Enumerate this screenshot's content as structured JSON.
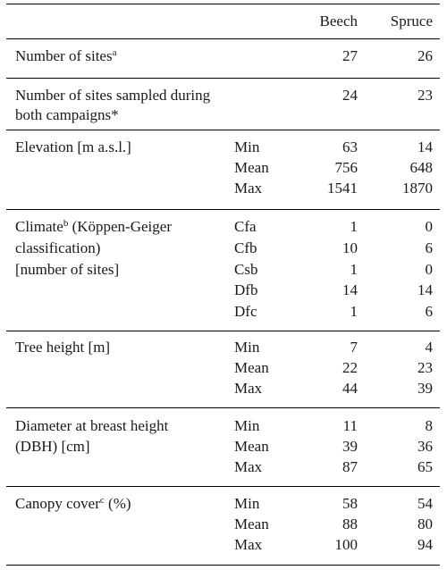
{
  "header": {
    "beech": "Beech",
    "spruce": "Spruce"
  },
  "rows": {
    "sites": {
      "label": "Number of sites",
      "sup": "a",
      "beech": "27",
      "spruce": "26"
    },
    "sampled": {
      "label1": "Number of sites sampled during",
      "label2": "both campaigns*",
      "beech": "24",
      "spruce": "23"
    },
    "elevation": {
      "label": "Elevation [m a.s.l.]",
      "subs": [
        "Min",
        "Mean",
        "Max"
      ],
      "beech": [
        "63",
        "756",
        "1541"
      ],
      "spruce": [
        "14",
        "648",
        "1870"
      ]
    },
    "climate": {
      "label1a": "Climate",
      "sup": "b",
      "label1b": " (Köppen-Geiger",
      "label2": "classification)",
      "label3": "[number of sites]",
      "subs": [
        "Cfa",
        "Cfb",
        "Csb",
        "Dfb",
        "Dfc"
      ],
      "beech": [
        "1",
        "10",
        "1",
        "14",
        "1"
      ],
      "spruce": [
        "0",
        "6",
        "0",
        "14",
        "6"
      ]
    },
    "height": {
      "label": "Tree height [m]",
      "subs": [
        "Min",
        "Mean",
        "Max"
      ],
      "beech": [
        "7",
        "22",
        "44"
      ],
      "spruce": [
        "4",
        "23",
        "39"
      ]
    },
    "dbh": {
      "label1": "Diameter at breast height",
      "label2": "(DBH) [cm]",
      "subs": [
        "Min",
        "Mean",
        "Max"
      ],
      "beech": [
        "11",
        "39",
        "87"
      ],
      "spruce": [
        "8",
        "36",
        "65"
      ]
    },
    "canopy": {
      "label1a": "Canopy cover",
      "sup": "c",
      "label1b": " (%)",
      "subs": [
        "Min",
        "Mean",
        "Max"
      ],
      "beech": [
        "58",
        "88",
        "100"
      ],
      "spruce": [
        "54",
        "80",
        "94"
      ]
    }
  }
}
